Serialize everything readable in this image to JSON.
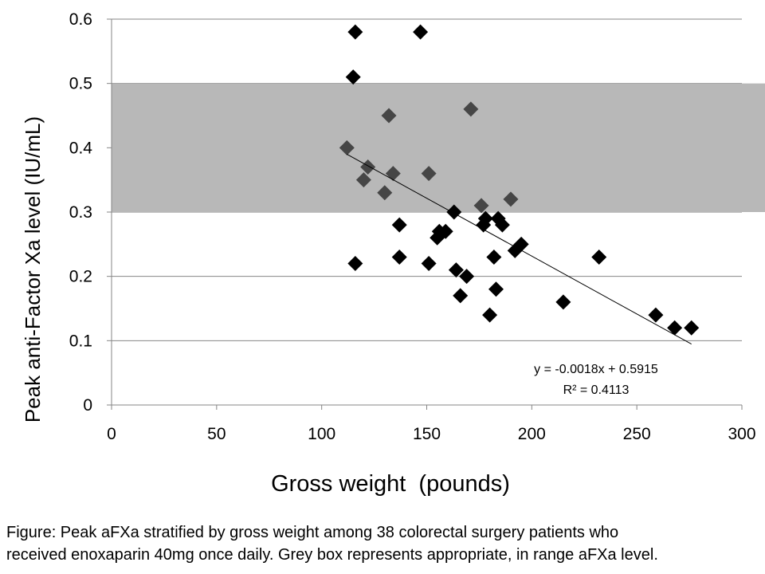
{
  "chart_data": {
    "type": "scatter",
    "title": "",
    "xlabel": "Gross weight  (pounds)",
    "ylabel": "Peak anti-Factor Xa level (IU/mL)",
    "xlim": [
      0,
      300
    ],
    "ylim": [
      0,
      0.6
    ],
    "xticks": [
      "0",
      "50",
      "100",
      "150",
      "200",
      "250",
      "300"
    ],
    "yticks": [
      "0",
      "0.1",
      "0.2",
      "0.3",
      "0.4",
      "0.5",
      "0.6"
    ],
    "grid": "horizontal",
    "marker": "diamond",
    "marker_color": "#000000",
    "range_band": {
      "y_from": 0.3,
      "y_to": 0.5,
      "color": "#b8b8b8"
    },
    "series": [
      {
        "points": [
          {
            "x": 116,
            "y": 0.58
          },
          {
            "x": 147,
            "y": 0.58
          },
          {
            "x": 115,
            "y": 0.51
          },
          {
            "x": 171,
            "y": 0.46
          },
          {
            "x": 132,
            "y": 0.45
          },
          {
            "x": 112,
            "y": 0.4
          },
          {
            "x": 122,
            "y": 0.37
          },
          {
            "x": 134,
            "y": 0.36
          },
          {
            "x": 151,
            "y": 0.36
          },
          {
            "x": 120,
            "y": 0.35
          },
          {
            "x": 130,
            "y": 0.33
          },
          {
            "x": 190,
            "y": 0.32
          },
          {
            "x": 176,
            "y": 0.31
          },
          {
            "x": 163,
            "y": 0.3
          },
          {
            "x": 178,
            "y": 0.29
          },
          {
            "x": 184,
            "y": 0.29
          },
          {
            "x": 137,
            "y": 0.28
          },
          {
            "x": 177,
            "y": 0.28
          },
          {
            "x": 186,
            "y": 0.28
          },
          {
            "x": 156,
            "y": 0.27
          },
          {
            "x": 159,
            "y": 0.27
          },
          {
            "x": 155,
            "y": 0.26
          },
          {
            "x": 195,
            "y": 0.25
          },
          {
            "x": 192,
            "y": 0.24
          },
          {
            "x": 137,
            "y": 0.23
          },
          {
            "x": 182,
            "y": 0.23
          },
          {
            "x": 232,
            "y": 0.23
          },
          {
            "x": 116,
            "y": 0.22
          },
          {
            "x": 151,
            "y": 0.22
          },
          {
            "x": 164,
            "y": 0.21
          },
          {
            "x": 169,
            "y": 0.2
          },
          {
            "x": 183,
            "y": 0.18
          },
          {
            "x": 166,
            "y": 0.17
          },
          {
            "x": 215,
            "y": 0.16
          },
          {
            "x": 180,
            "y": 0.14
          },
          {
            "x": 259,
            "y": 0.14
          },
          {
            "x": 268,
            "y": 0.12
          },
          {
            "x": 276,
            "y": 0.12
          }
        ]
      }
    ],
    "trendline": {
      "slope": -0.0018,
      "intercept": 0.5915,
      "x_range": [
        112,
        276
      ],
      "equation_label": "y = -0.0018x + 0.5915",
      "r2_label": "R² = 0.4113"
    }
  },
  "caption": {
    "line1": "Figure: Peak aFXa stratified by gross weight among 38 colorectal surgery patients who",
    "line2": "received enoxaparin 40mg once daily.  Grey box represents appropriate, in range aFXa level."
  }
}
